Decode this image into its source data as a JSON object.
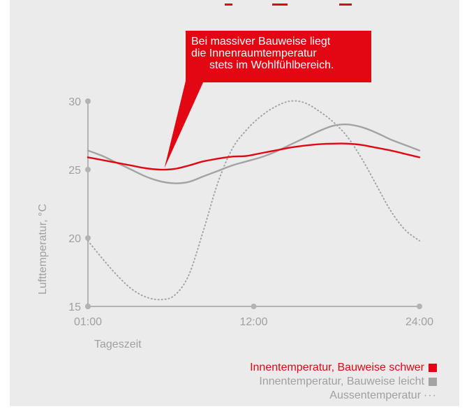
{
  "title_partial": "",
  "callout": {
    "lines": [
      "Bei massiver Bauweise liegt",
      "die Innenraumtemperatur",
      "stets im Wohlfühlbereich."
    ]
  },
  "colors": {
    "accent": "#e30613",
    "gray_line": "#a3a3a3",
    "axis": "#b3b3b3",
    "text_gray": "#a0a0a0",
    "background": "#ebebeb"
  },
  "chart_data": {
    "type": "line",
    "ylabel": "Lufttemperatur, °C",
    "xlabel": "Tageszeit",
    "x_ticks": [
      "01:00",
      "12:00",
      "24:00"
    ],
    "y_ticks": [
      15,
      20,
      25,
      30
    ],
    "xlim": [
      1,
      24
    ],
    "ylim": [
      15,
      30
    ],
    "x": [
      1,
      2,
      3,
      4,
      5,
      6,
      7,
      8,
      9,
      10,
      11,
      12,
      13,
      14,
      15,
      16,
      17,
      18,
      19,
      20,
      21,
      22,
      23,
      24
    ],
    "series": [
      {
        "name": "Innentemperatur, Bauweise schwer",
        "color": "#e30613",
        "style": "solid",
        "values": [
          25.9,
          25.7,
          25.5,
          25.3,
          25.1,
          25.0,
          25.05,
          25.3,
          25.6,
          25.8,
          25.95,
          26.0,
          26.2,
          26.4,
          26.6,
          26.75,
          26.85,
          26.9,
          26.9,
          26.8,
          26.6,
          26.4,
          26.15,
          25.9
        ]
      },
      {
        "name": "Innentemperatur, Bauweise leicht",
        "color": "#a3a3a3",
        "style": "solid",
        "values": [
          26.4,
          26.0,
          25.5,
          25.0,
          24.5,
          24.15,
          24.0,
          24.1,
          24.5,
          24.9,
          25.3,
          25.6,
          25.9,
          26.3,
          26.8,
          27.3,
          27.8,
          28.2,
          28.3,
          28.1,
          27.7,
          27.2,
          26.8,
          26.4
        ]
      },
      {
        "name": "Aussentemperatur",
        "color": "#a3a3a3",
        "style": "dotted",
        "values": [
          19.8,
          18.5,
          17.3,
          16.3,
          15.7,
          15.5,
          15.8,
          17.3,
          20.5,
          24.0,
          26.5,
          27.9,
          28.9,
          29.6,
          30.0,
          29.9,
          29.3,
          28.5,
          27.4,
          25.8,
          23.9,
          22.0,
          20.6,
          19.8
        ]
      }
    ],
    "legend": [
      "Innentemperatur, Bauweise schwer",
      "Innentemperatur, Bauweise leicht",
      "Aussentemperatur"
    ],
    "legend_position": "bottom-right",
    "grid": false
  }
}
